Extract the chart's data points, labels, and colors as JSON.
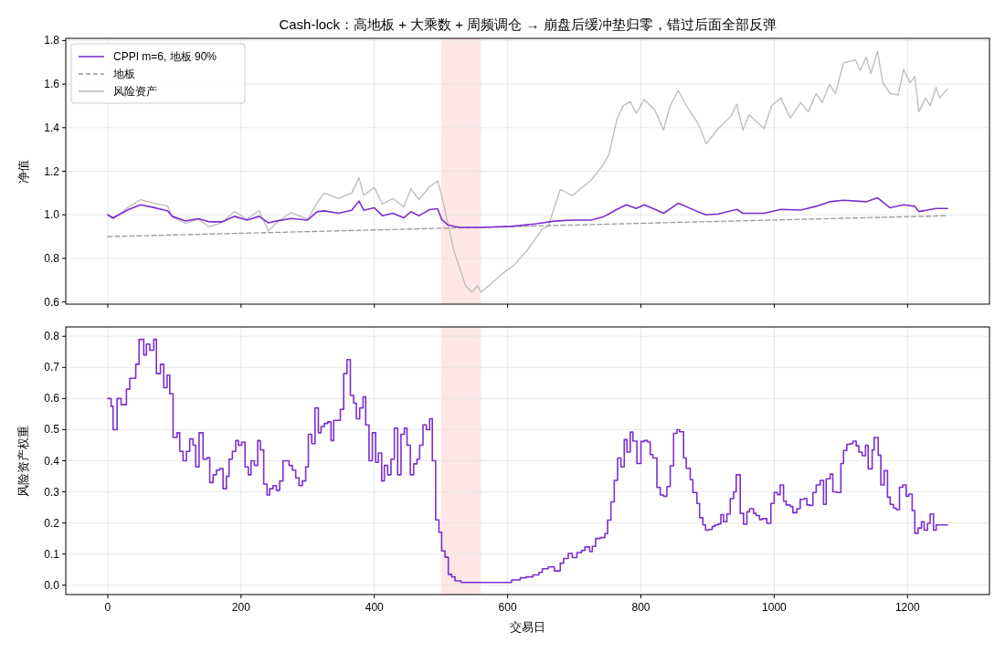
{
  "chart_data": [
    {
      "type": "line",
      "title": "Cash-lock：高地板 + 大乘数 + 周频调仓 → 崩盘后缓冲垫归零，错过后面全部反弹",
      "ylabel": "净值",
      "xlim": [
        -63,
        1323
      ],
      "ylim": [
        0.59,
        1.81
      ],
      "xticks": [
        0,
        200,
        400,
        600,
        800,
        1000,
        1200
      ],
      "yticks": [
        {
          "value": 0.6,
          "label": "0.6"
        },
        {
          "value": 0.8,
          "label": "0.8"
        },
        {
          "value": 1,
          "label": "1.0"
        },
        {
          "value": 1.2,
          "label": "1.2"
        },
        {
          "value": 1.4,
          "label": "1.4"
        },
        {
          "value": 1.6,
          "label": "1.6"
        },
        {
          "value": 1.8,
          "label": "1.8"
        }
      ],
      "grid": true,
      "legend": "top left",
      "tick_labels": "y",
      "bands": [
        {
          "axis": "x",
          "from": 500,
          "to": 560,
          "color": "#ffdddd"
        }
      ],
      "series": [
        {
          "name": "CPPI m=6, 地板 90%",
          "color": "#7b2fd0",
          "line_style": "solid",
          "x": [
            0,
            8,
            31,
            49,
            67,
            90,
            97,
            117,
            136,
            152,
            172,
            190,
            209,
            227,
            241,
            254,
            275,
            300,
            314,
            325,
            346,
            366,
            377,
            384,
            400,
            412,
            428,
            444,
            455,
            467,
            483,
            495,
            501,
            510,
            528,
            560,
            606,
            643,
            670,
            697,
            725,
            743,
            752,
            764,
            778,
            793,
            805,
            821,
            834,
            856,
            885,
            898,
            916,
            944,
            953,
            985,
            1010,
            1040,
            1063,
            1083,
            1104,
            1138,
            1155,
            1174,
            1194,
            1211,
            1217,
            1243,
            1260
          ],
          "values": [
            1.0,
            0.986,
            1.024,
            1.046,
            1.035,
            1.018,
            0.993,
            0.972,
            0.982,
            0.968,
            0.968,
            0.993,
            0.976,
            0.993,
            0.963,
            0.972,
            0.983,
            0.976,
            1.014,
            1.018,
            1.007,
            1.021,
            1.063,
            1.021,
            1.032,
            0.996,
            1.007,
            0.986,
            1.014,
            0.996,
            1.024,
            1.028,
            0.979,
            0.954,
            0.942,
            0.942,
            0.947,
            0.959,
            0.971,
            0.976,
            0.976,
            0.99,
            1.004,
            1.025,
            1.046,
            1.029,
            1.046,
            1.025,
            1.007,
            1.053,
            1.015,
            1.0,
            1.004,
            1.025,
            1.007,
            1.007,
            1.025,
            1.022,
            1.039,
            1.06,
            1.067,
            1.06,
            1.078,
            1.032,
            1.046,
            1.039,
            1.015,
            1.029,
            1.029
          ]
        },
        {
          "name": "地板",
          "color": "#999999",
          "line_style": "dashed",
          "x": [
            0,
            1260
          ],
          "values": [
            0.9,
            0.996
          ]
        },
        {
          "name": "风险资产",
          "color": "#bbbbbb",
          "line_style": "solid",
          "x": [
            0,
            8,
            31,
            49,
            67,
            90,
            97,
            117,
            136,
            152,
            172,
            190,
            209,
            227,
            241,
            254,
            275,
            300,
            314,
            325,
            346,
            366,
            377,
            384,
            400,
            412,
            428,
            444,
            455,
            467,
            483,
            495,
            501,
            510,
            519,
            528,
            537,
            546,
            555,
            560,
            574,
            592,
            610,
            629,
            652,
            661,
            679,
            697,
            725,
            743,
            752,
            764,
            773,
            784,
            793,
            805,
            821,
            834,
            843,
            856,
            871,
            885,
            898,
            916,
            935,
            944,
            953,
            962,
            985,
            996,
            1010,
            1024,
            1040,
            1051,
            1063,
            1072,
            1083,
            1092,
            1104,
            1122,
            1129,
            1138,
            1145,
            1155,
            1163,
            1174,
            1186,
            1194,
            1204,
            1211,
            1217,
            1227,
            1234,
            1243,
            1248,
            1260
          ],
          "values": [
            1.0,
            0.98,
            1.035,
            1.07,
            1.055,
            1.04,
            0.99,
            0.96,
            0.98,
            0.945,
            0.965,
            1.015,
            0.98,
            1.02,
            0.925,
            0.965,
            1.01,
            0.98,
            1.055,
            1.1,
            1.075,
            1.1,
            1.17,
            1.09,
            1.125,
            1.05,
            1.075,
            1.035,
            1.12,
            1.07,
            1.13,
            1.155,
            1.09,
            0.965,
            0.84,
            0.755,
            0.675,
            0.645,
            0.675,
            0.645,
            0.68,
            0.73,
            0.77,
            0.836,
            0.934,
            0.948,
            1.116,
            1.088,
            1.158,
            1.228,
            1.277,
            1.438,
            1.5,
            1.52,
            1.466,
            1.529,
            1.48,
            1.389,
            1.494,
            1.571,
            1.487,
            1.424,
            1.326,
            1.396,
            1.452,
            1.508,
            1.389,
            1.459,
            1.396,
            1.501,
            1.536,
            1.445,
            1.515,
            1.473,
            1.557,
            1.515,
            1.599,
            1.557,
            1.697,
            1.711,
            1.662,
            1.724,
            1.648,
            1.752,
            1.606,
            1.557,
            1.55,
            1.668,
            1.606,
            1.634,
            1.473,
            1.536,
            1.501,
            1.585,
            1.536,
            1.578
          ]
        }
      ]
    },
    {
      "type": "step",
      "xlabel": "交易日",
      "ylabel": "风险资产权重",
      "xlim": [
        -63,
        1323
      ],
      "ylim": [
        -0.03,
        0.83
      ],
      "xticks": [
        0,
        200,
        400,
        600,
        800,
        1000,
        1200
      ],
      "yticks": [
        {
          "value": 0,
          "label": "0.0"
        },
        {
          "value": 0.1,
          "label": "0.1"
        },
        {
          "value": 0.2,
          "label": "0.2"
        },
        {
          "value": 0.3,
          "label": "0.3"
        },
        {
          "value": 0.4,
          "label": "0.4"
        },
        {
          "value": 0.5,
          "label": "0.5"
        },
        {
          "value": 0.6,
          "label": "0.6"
        },
        {
          "value": 0.7,
          "label": "0.7"
        },
        {
          "value": 0.8,
          "label": "0.8"
        }
      ],
      "grid": true,
      "bands": [
        {
          "axis": "x",
          "from": 500,
          "to": 560,
          "color": "#ffdddd"
        }
      ],
      "series": [
        {
          "color": "#7b2fd0",
          "line_style": "solid",
          "x": [
            0,
            5,
            8,
            14,
            20,
            28,
            33,
            42,
            47,
            54,
            58,
            63,
            69,
            73,
            79,
            84,
            89,
            93,
            98,
            104,
            108,
            113,
            118,
            123,
            128,
            132,
            137,
            143,
            149,
            153,
            158,
            163,
            168,
            173,
            178,
            182,
            187,
            192,
            196,
            201,
            206,
            211,
            215,
            220,
            225,
            229,
            234,
            239,
            243,
            248,
            253,
            258,
            263,
            272,
            277,
            282,
            287,
            292,
            297,
            301,
            306,
            311,
            316,
            320,
            325,
            330,
            335,
            339,
            344,
            349,
            354,
            359,
            364,
            369,
            373,
            378,
            383,
            387,
            392,
            397,
            402,
            406,
            411,
            415,
            420,
            425,
            430,
            435,
            440,
            445,
            449,
            454,
            459,
            464,
            468,
            473,
            478,
            483,
            487,
            492,
            497,
            501,
            506,
            511,
            516,
            521,
            530,
            560,
            606,
            619,
            628,
            638,
            647,
            652,
            661,
            670,
            679,
            684,
            691,
            697,
            704,
            711,
            716,
            723,
            727,
            732,
            739,
            746,
            750,
            755,
            760,
            765,
            770,
            775,
            779,
            784,
            788,
            794,
            800,
            805,
            810,
            814,
            818,
            824,
            829,
            834,
            839,
            844,
            849,
            854,
            858,
            864,
            868,
            874,
            878,
            884,
            888,
            893,
            897,
            902,
            907,
            911,
            916,
            920,
            924,
            929,
            934,
            939,
            943,
            949,
            954,
            959,
            963,
            969,
            973,
            978,
            982,
            989,
            995,
            1000,
            1005,
            1009,
            1014,
            1018,
            1024,
            1028,
            1034,
            1039,
            1045,
            1049,
            1054,
            1058,
            1063,
            1069,
            1074,
            1078,
            1084,
            1088,
            1094,
            1100,
            1104,
            1109,
            1114,
            1118,
            1123,
            1127,
            1132,
            1137,
            1141,
            1147,
            1150,
            1156,
            1160,
            1165,
            1170,
            1174,
            1179,
            1183,
            1188,
            1193,
            1198,
            1202,
            1207,
            1211,
            1216,
            1221,
            1225,
            1230,
            1234,
            1239,
            1243,
            1248,
            1254,
            1260
          ],
          "values": [
            0.6,
            0.575,
            0.5,
            0.6,
            0.58,
            0.63,
            0.665,
            0.71,
            0.79,
            0.74,
            0.775,
            0.755,
            0.79,
            0.68,
            0.71,
            0.635,
            0.675,
            0.615,
            0.475,
            0.49,
            0.43,
            0.4,
            0.43,
            0.47,
            0.45,
            0.38,
            0.49,
            0.405,
            0.41,
            0.33,
            0.355,
            0.37,
            0.375,
            0.31,
            0.35,
            0.405,
            0.43,
            0.465,
            0.45,
            0.46,
            0.38,
            0.355,
            0.4,
            0.385,
            0.465,
            0.435,
            0.325,
            0.29,
            0.31,
            0.32,
            0.305,
            0.335,
            0.4,
            0.385,
            0.37,
            0.345,
            0.32,
            0.335,
            0.38,
            0.485,
            0.455,
            0.57,
            0.49,
            0.51,
            0.52,
            0.525,
            0.465,
            0.53,
            0.53,
            0.565,
            0.68,
            0.725,
            0.61,
            0.585,
            0.535,
            0.57,
            0.605,
            0.515,
            0.4,
            0.49,
            0.395,
            0.425,
            0.335,
            0.385,
            0.355,
            0.405,
            0.505,
            0.355,
            0.485,
            0.505,
            0.45,
            0.355,
            0.39,
            0.405,
            0.45,
            0.515,
            0.5,
            0.535,
            0.4,
            0.21,
            0.17,
            0.11,
            0.09,
            0.035,
            0.027,
            0.014,
            0.009,
            0.009,
            0.017,
            0.024,
            0.027,
            0.033,
            0.041,
            0.053,
            0.059,
            0.046,
            0.071,
            0.086,
            0.102,
            0.089,
            0.105,
            0.112,
            0.123,
            0.108,
            0.125,
            0.15,
            0.153,
            0.166,
            0.209,
            0.268,
            0.337,
            0.409,
            0.38,
            0.468,
            0.428,
            0.492,
            0.463,
            0.391,
            0.462,
            0.465,
            0.46,
            0.42,
            0.409,
            0.314,
            0.29,
            0.286,
            0.317,
            0.384,
            0.488,
            0.5,
            0.493,
            0.409,
            0.376,
            0.339,
            0.298,
            0.263,
            0.217,
            0.194,
            0.177,
            0.179,
            0.189,
            0.194,
            0.197,
            0.227,
            0.204,
            0.229,
            0.278,
            0.3,
            0.355,
            0.231,
            0.196,
            0.236,
            0.246,
            0.231,
            0.224,
            0.211,
            0.214,
            0.199,
            0.263,
            0.298,
            0.291,
            0.322,
            0.27,
            0.258,
            0.253,
            0.233,
            0.246,
            0.276,
            0.278,
            0.258,
            0.256,
            0.298,
            0.322,
            0.337,
            0.26,
            0.342,
            0.357,
            0.3,
            0.298,
            0.391,
            0.433,
            0.453,
            0.455,
            0.463,
            0.448,
            0.428,
            0.416,
            0.45,
            0.374,
            0.435,
            0.475,
            0.418,
            0.322,
            0.368,
            0.283,
            0.26,
            0.248,
            0.243,
            0.315,
            0.322,
            0.286,
            0.293,
            0.24,
            0.167,
            0.184,
            0.204,
            0.177,
            0.199,
            0.229,
            0.177,
            0.194,
            0.194,
            0.194,
            0.194
          ]
        }
      ]
    }
  ]
}
